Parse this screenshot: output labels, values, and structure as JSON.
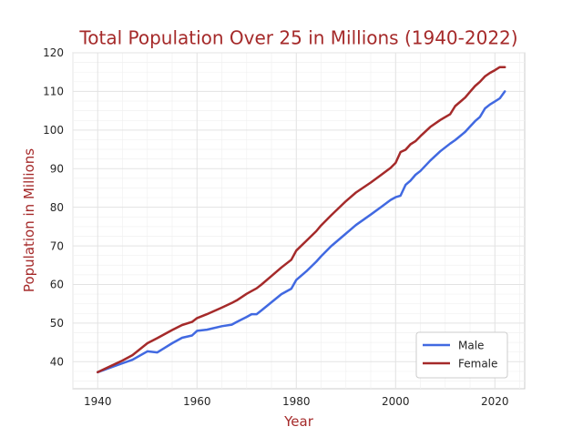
{
  "chart_data": {
    "type": "line",
    "title": "Total Population Over 25 in Millions (1940-2022)",
    "xlabel": "Year",
    "ylabel": "Population in Millions",
    "xlim": [
      1935,
      2026
    ],
    "ylim": [
      33,
      120
    ],
    "xticks": [
      1940,
      1960,
      1980,
      2000,
      2020
    ],
    "yticks": [
      40,
      50,
      60,
      70,
      80,
      90,
      100,
      110,
      120
    ],
    "grid": true,
    "legend_position": "lower-right",
    "x": [
      1940,
      1945,
      1947,
      1950,
      1952,
      1955,
      1957,
      1959,
      1960,
      1962,
      1965,
      1967,
      1968,
      1970,
      1971,
      1972,
      1973,
      1975,
      1977,
      1979,
      1980,
      1982,
      1984,
      1985,
      1987,
      1990,
      1992,
      1995,
      1997,
      1999,
      2000,
      2001,
      2002,
      2003,
      2004,
      2005,
      2007,
      2009,
      2011,
      2012,
      2014,
      2015,
      2016,
      2017,
      2018,
      2019,
      2020,
      2021,
      2022
    ],
    "series": [
      {
        "name": "Male",
        "color": "#4169e1",
        "values": [
          37.3,
          39.6,
          40.5,
          42.7,
          42.4,
          44.8,
          46.2,
          46.8,
          48.0,
          48.3,
          49.2,
          49.6,
          50.3,
          51.6,
          52.3,
          52.3,
          53.3,
          55.4,
          57.5,
          58.9,
          61.2,
          63.4,
          65.9,
          67.3,
          69.9,
          73.2,
          75.4,
          78.1,
          80.0,
          81.9,
          82.6,
          83.0,
          85.8,
          86.9,
          88.4,
          89.4,
          92.1,
          94.5,
          96.5,
          97.4,
          99.5,
          100.9,
          102.3,
          103.4,
          105.6,
          106.6,
          107.4,
          108.2,
          110.0
        ]
      },
      {
        "name": "Female",
        "color": "#a52a2a",
        "values": [
          37.3,
          40.3,
          41.7,
          44.8,
          46.1,
          48.2,
          49.5,
          50.3,
          51.3,
          52.3,
          54.0,
          55.2,
          55.9,
          57.6,
          58.3,
          59.0,
          60.0,
          62.2,
          64.4,
          66.4,
          68.8,
          71.3,
          73.8,
          75.3,
          77.9,
          81.6,
          83.8,
          86.4,
          88.3,
          90.2,
          91.5,
          94.3,
          94.9,
          96.3,
          97.1,
          98.4,
          100.8,
          102.6,
          104.1,
          106.2,
          108.4,
          109.9,
          111.4,
          112.5,
          113.9,
          114.8,
          115.5,
          116.3,
          116.3
        ]
      }
    ]
  }
}
